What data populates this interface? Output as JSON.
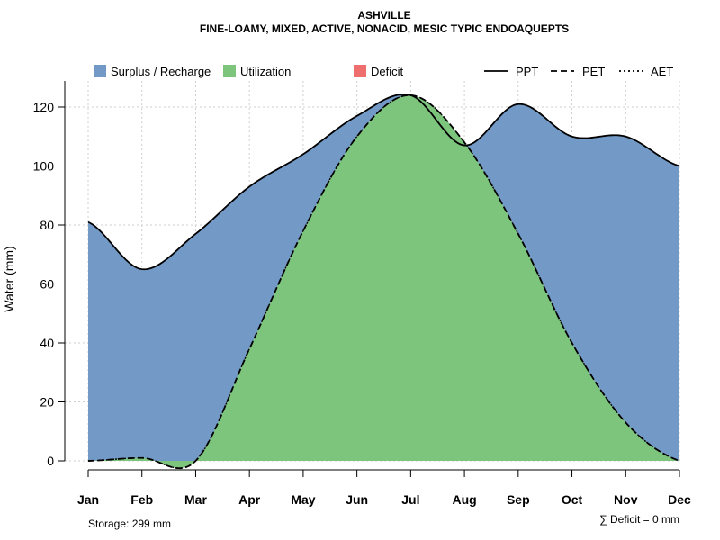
{
  "chart_data": {
    "type": "area",
    "title": "ASHVILLE",
    "subtitle": "FINE-LOAMY, MIXED, ACTIVE, NONACID, MESIC TYPIC ENDOAQUEPTS",
    "xlabel": "",
    "ylabel": "Water (mm)",
    "categories": [
      "Jan",
      "Feb",
      "Mar",
      "Apr",
      "May",
      "Jun",
      "Jul",
      "Aug",
      "Sep",
      "Oct",
      "Nov",
      "Dec"
    ],
    "ylim": [
      0,
      130
    ],
    "yticks": [
      0,
      20,
      40,
      60,
      80,
      100,
      120
    ],
    "grid": true,
    "legend_position": "top",
    "series": [
      {
        "name": "PPT",
        "values": [
          81,
          65,
          77,
          93,
          104,
          117,
          124,
          107,
          121,
          110,
          110,
          100
        ]
      },
      {
        "name": "PET",
        "values": [
          0,
          1,
          0,
          38,
          78,
          110,
          124,
          108,
          77,
          40,
          13,
          0
        ]
      },
      {
        "name": "AET",
        "values": [
          0,
          1,
          0,
          38,
          78,
          110,
          124,
          108,
          77,
          40,
          13,
          0
        ]
      }
    ],
    "fill_legend": [
      {
        "name": "Surplus / Recharge",
        "color": "#7399C6"
      },
      {
        "name": "Utilization",
        "color": "#7DC47C"
      },
      {
        "name": "Deficit",
        "color": "#EE6D6D"
      }
    ],
    "line_legend": [
      "PPT",
      "PET",
      "AET"
    ],
    "annotations": {
      "storage": "Storage: 299 mm",
      "deficit": "∑ Deficit = 0 mm"
    }
  }
}
